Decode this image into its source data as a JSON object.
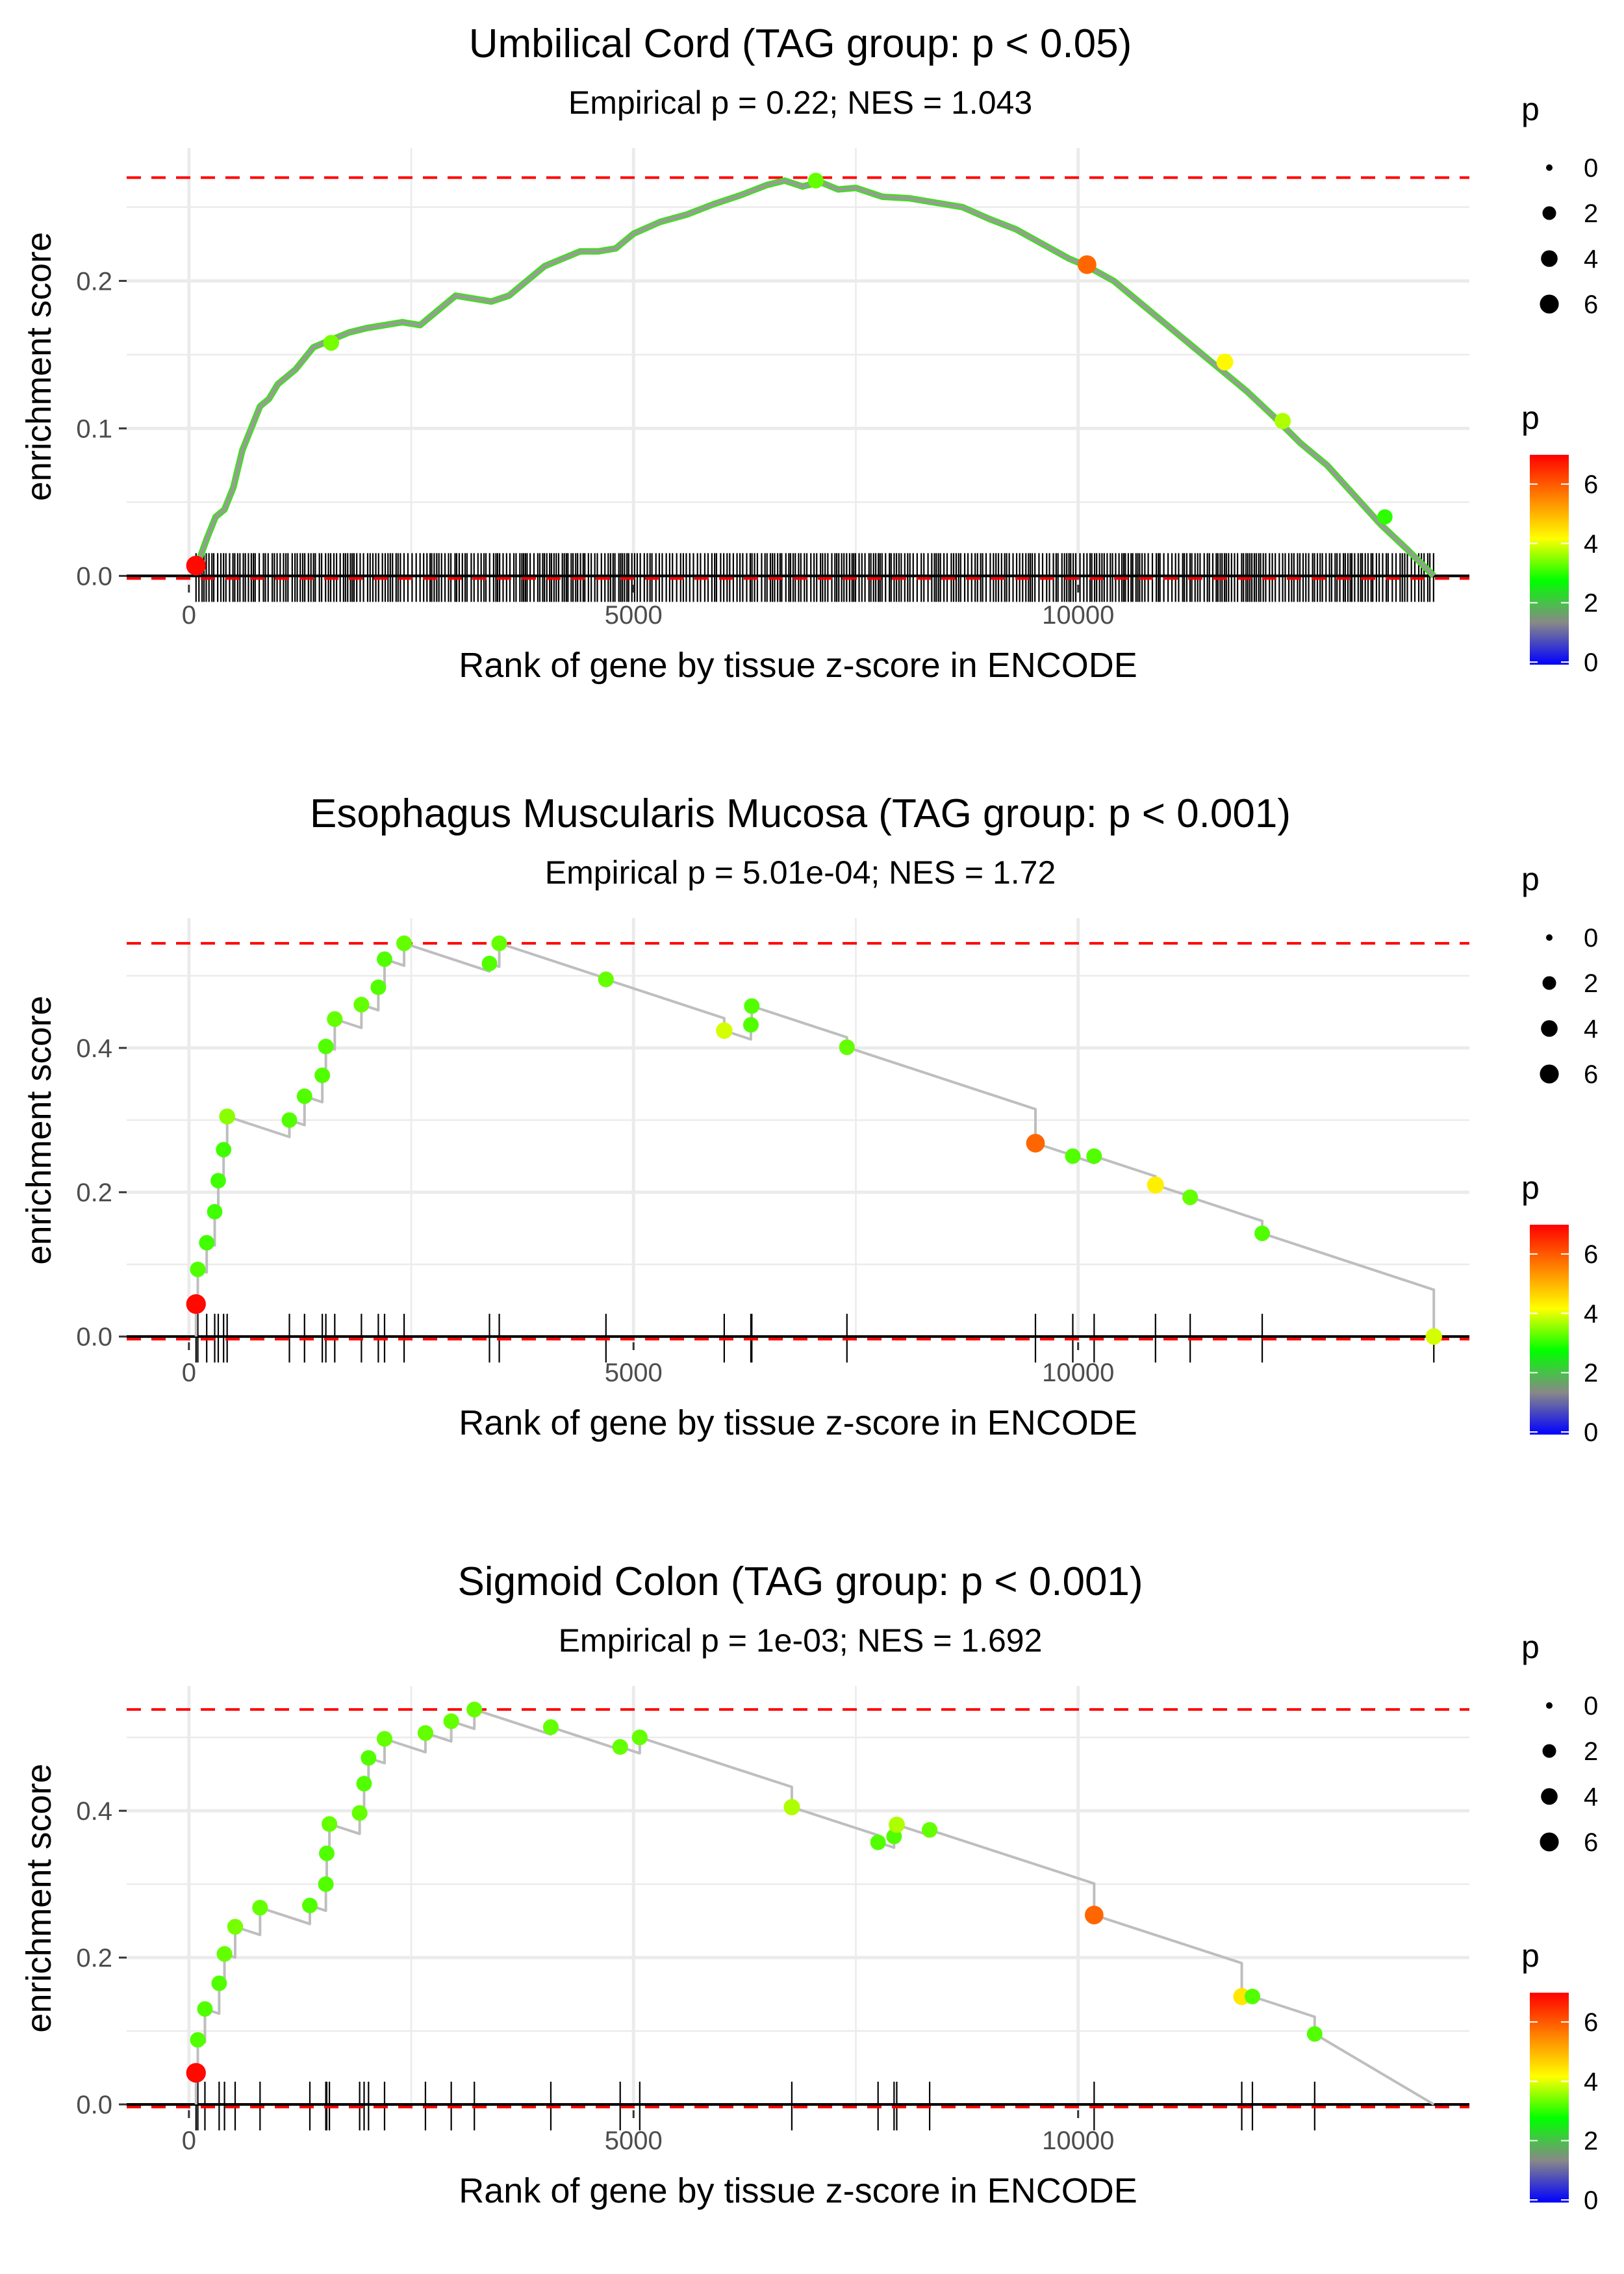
{
  "panels": [
    {
      "title": "Umbilical Cord (TAG group: p < 0.05)",
      "subtitle": "Empirical p = 0.22; NES = 1.043",
      "chart_data": {
        "type": "line",
        "title": "Umbilical Cord (TAG group: p < 0.05)",
        "xlabel": "Rank of gene by tissue z-score in ENCODE",
        "ylabel": "enrichment score",
        "xlim": [
          -700,
          14400
        ],
        "ylim": [
          -0.006,
          0.29
        ],
        "xticks": [
          0,
          5000,
          10000
        ],
        "xtick_labels": [
          "0",
          "5000",
          "10000"
        ],
        "yticks": [
          0,
          0.1,
          0.2
        ],
        "ytick_labels": [
          "0.0",
          "0.1",
          "0.2"
        ],
        "max_es": 0.27,
        "curve": {
          "x": [
            80,
            200,
            300,
            400,
            500,
            600,
            700,
            800,
            900,
            1000,
            1200,
            1400,
            1600,
            1800,
            2000,
            2200,
            2400,
            2600,
            2800,
            3000,
            3200,
            3400,
            3600,
            3800,
            4000,
            4200,
            4400,
            4600,
            4800,
            5000,
            5300,
            5600,
            5900,
            6200,
            6500,
            6700,
            6900,
            7100,
            7300,
            7500,
            7800,
            8100,
            8400,
            8700,
            9000,
            9300,
            9600,
            9900,
            10100,
            10400,
            10700,
            11000,
            11300,
            11600,
            11900,
            12200,
            12500,
            12800,
            13100,
            13400,
            13700,
            14000
          ],
          "y": [
            0.005,
            0.025,
            0.04,
            0.045,
            0.06,
            0.085,
            0.1,
            0.115,
            0.12,
            0.13,
            0.14,
            0.155,
            0.16,
            0.165,
            0.168,
            0.17,
            0.172,
            0.17,
            0.18,
            0.19,
            0.188,
            0.186,
            0.19,
            0.2,
            0.21,
            0.215,
            0.22,
            0.22,
            0.222,
            0.232,
            0.24,
            0.245,
            0.252,
            0.258,
            0.265,
            0.268,
            0.264,
            0.267,
            0.262,
            0.263,
            0.257,
            0.256,
            0.253,
            0.25,
            0.242,
            0.235,
            0.225,
            0.215,
            0.21,
            0.2,
            0.185,
            0.17,
            0.155,
            0.14,
            0.125,
            0.108,
            0.09,
            0.075,
            0.055,
            0.035,
            0.018,
            0.0
          ]
        },
        "points": [
          {
            "x": 80,
            "y": 0.007,
            "p": 6.8
          },
          {
            "x": 1600,
            "y": 0.158,
            "p": 3.4
          },
          {
            "x": 7050,
            "y": 0.268,
            "p": 3.3
          },
          {
            "x": 10100,
            "y": 0.211,
            "p": 5.8
          },
          {
            "x": 11650,
            "y": 0.145,
            "p": 4.2
          },
          {
            "x": 12300,
            "y": 0.105,
            "p": 3.7
          },
          {
            "x": 13450,
            "y": 0.04,
            "p": 3.0
          }
        ],
        "rug": {
          "start": 80,
          "end": 14000,
          "dense": true,
          "seed": 7
        }
      }
    },
    {
      "title": "Esophagus Muscularis Mucosa (TAG group: p < 0.001)",
      "subtitle": "Empirical p = 5.01e-04; NES = 1.72",
      "chart_data": {
        "type": "line",
        "title": "Esophagus Muscularis Mucosa (TAG group: p < 0.001)",
        "xlabel": "Rank of gene by tissue z-score in ENCODE",
        "ylabel": "enrichment score",
        "xlim": [
          -700,
          14400
        ],
        "ylim": [
          -0.008,
          0.58
        ],
        "xticks": [
          0,
          5000,
          10000
        ],
        "xtick_labels": [
          "0",
          "5000",
          "10000"
        ],
        "yticks": [
          0,
          0.2,
          0.4
        ],
        "ytick_labels": [
          "0.0",
          "0.2",
          "0.4"
        ],
        "max_es": 0.545,
        "start_y": 0.0,
        "end_x": 14000,
        "slope": 4.05e-05,
        "points": [
          {
            "x": 80,
            "y": 0.045,
            "p": 6.8
          },
          {
            "x": 100,
            "y": 0.093,
            "p": 3.2
          },
          {
            "x": 200,
            "y": 0.13,
            "p": 3.1
          },
          {
            "x": 290,
            "y": 0.173,
            "p": 3.1
          },
          {
            "x": 330,
            "y": 0.216,
            "p": 3.1
          },
          {
            "x": 390,
            "y": 0.259,
            "p": 3.1
          },
          {
            "x": 430,
            "y": 0.305,
            "p": 3.5
          },
          {
            "x": 1130,
            "y": 0.3,
            "p": 3.2
          },
          {
            "x": 1300,
            "y": 0.333,
            "p": 3.2
          },
          {
            "x": 1500,
            "y": 0.362,
            "p": 3.2
          },
          {
            "x": 1540,
            "y": 0.402,
            "p": 3.2
          },
          {
            "x": 1640,
            "y": 0.44,
            "p": 3.3
          },
          {
            "x": 1940,
            "y": 0.46,
            "p": 3.3
          },
          {
            "x": 2130,
            "y": 0.484,
            "p": 3.2
          },
          {
            "x": 2200,
            "y": 0.523,
            "p": 3.2
          },
          {
            "x": 2420,
            "y": 0.545,
            "p": 3.3
          },
          {
            "x": 3380,
            "y": 0.517,
            "p": 3.2
          },
          {
            "x": 3490,
            "y": 0.545,
            "p": 3.3
          },
          {
            "x": 4690,
            "y": 0.495,
            "p": 3.3
          },
          {
            "x": 6020,
            "y": 0.424,
            "p": 3.9
          },
          {
            "x": 6320,
            "y": 0.432,
            "p": 3.2
          },
          {
            "x": 6330,
            "y": 0.458,
            "p": 3.2
          },
          {
            "x": 7400,
            "y": 0.401,
            "p": 3.3
          },
          {
            "x": 9520,
            "y": 0.268,
            "p": 5.8
          },
          {
            "x": 9940,
            "y": 0.25,
            "p": 3.2
          },
          {
            "x": 10180,
            "y": 0.25,
            "p": 3.2
          },
          {
            "x": 10870,
            "y": 0.21,
            "p": 4.3
          },
          {
            "x": 11260,
            "y": 0.193,
            "p": 3.3
          },
          {
            "x": 12070,
            "y": 0.143,
            "p": 3.2
          },
          {
            "x": 14000,
            "y": 0.0,
            "p": 3.9
          }
        ]
      }
    },
    {
      "title": "Sigmoid Colon (TAG group: p < 0.001)",
      "subtitle": "Empirical p = 1e-03; NES = 1.692",
      "chart_data": {
        "type": "line",
        "title": "Sigmoid Colon (TAG group: p < 0.001)",
        "xlabel": "Rank of gene by tissue z-score in ENCODE",
        "ylabel": "enrichment score",
        "xlim": [
          -700,
          14400
        ],
        "ylim": [
          -0.008,
          0.57
        ],
        "xticks": [
          0,
          5000,
          10000
        ],
        "xtick_labels": [
          "0",
          "5000",
          "10000"
        ],
        "yticks": [
          0,
          0.2,
          0.4
        ],
        "ytick_labels": [
          "0.0",
          "0.2",
          "0.4"
        ],
        "max_es": 0.538,
        "start_y": 0.0,
        "end_x": 14000,
        "slope": 3.95e-05,
        "points": [
          {
            "x": 80,
            "y": 0.043,
            "p": 6.8
          },
          {
            "x": 100,
            "y": 0.088,
            "p": 3.2
          },
          {
            "x": 180,
            "y": 0.13,
            "p": 3.2
          },
          {
            "x": 340,
            "y": 0.165,
            "p": 3.2
          },
          {
            "x": 400,
            "y": 0.205,
            "p": 3.3
          },
          {
            "x": 520,
            "y": 0.242,
            "p": 3.4
          },
          {
            "x": 800,
            "y": 0.268,
            "p": 3.3
          },
          {
            "x": 1360,
            "y": 0.271,
            "p": 3.2
          },
          {
            "x": 1540,
            "y": 0.3,
            "p": 3.2
          },
          {
            "x": 1550,
            "y": 0.342,
            "p": 3.2
          },
          {
            "x": 1580,
            "y": 0.382,
            "p": 3.3
          },
          {
            "x": 1920,
            "y": 0.397,
            "p": 3.3
          },
          {
            "x": 1970,
            "y": 0.437,
            "p": 3.2
          },
          {
            "x": 2020,
            "y": 0.472,
            "p": 3.2
          },
          {
            "x": 2200,
            "y": 0.498,
            "p": 3.3
          },
          {
            "x": 2660,
            "y": 0.506,
            "p": 3.3
          },
          {
            "x": 2950,
            "y": 0.522,
            "p": 3.3
          },
          {
            "x": 3210,
            "y": 0.538,
            "p": 3.3
          },
          {
            "x": 4070,
            "y": 0.514,
            "p": 3.3
          },
          {
            "x": 4850,
            "y": 0.487,
            "p": 3.3
          },
          {
            "x": 5070,
            "y": 0.5,
            "p": 3.3
          },
          {
            "x": 6780,
            "y": 0.405,
            "p": 3.7
          },
          {
            "x": 7750,
            "y": 0.357,
            "p": 3.2
          },
          {
            "x": 7930,
            "y": 0.365,
            "p": 3.2
          },
          {
            "x": 7960,
            "y": 0.381,
            "p": 3.7
          },
          {
            "x": 8330,
            "y": 0.374,
            "p": 3.3
          },
          {
            "x": 10180,
            "y": 0.258,
            "p": 5.8
          },
          {
            "x": 11840,
            "y": 0.147,
            "p": 4.4
          },
          {
            "x": 11960,
            "y": 0.147,
            "p": 3.2
          },
          {
            "x": 12660,
            "y": 0.096,
            "p": 3.2
          }
        ]
      }
    }
  ],
  "legend": {
    "size_title": "p",
    "size_labels": [
      "0",
      "2",
      "4",
      "6"
    ],
    "color_title": "p",
    "color_labels": [
      "0",
      "2",
      "4",
      "6"
    ],
    "color_stops": [
      "#0000FF",
      "#888888",
      "#00FF00",
      "#FFFF00",
      "#FF8000",
      "#FF0000"
    ]
  },
  "colors": {
    "line": "#bebebe",
    "ref_line": "#FF0000",
    "grid": "#EBEBEB",
    "rug": "#000000"
  }
}
